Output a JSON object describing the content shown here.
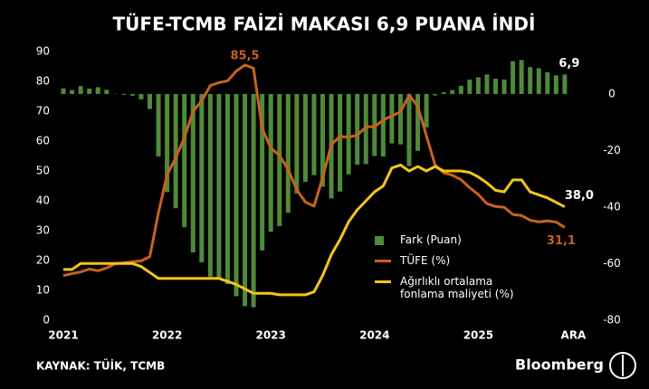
{
  "chart_data": {
    "type": "combo",
    "title": "TÜFE-TCMB FAİZİ MAKASI 6,9 PUANA İNDİ",
    "categories": [
      "2021",
      null,
      null,
      null,
      null,
      null,
      null,
      null,
      null,
      null,
      null,
      null,
      "2022",
      null,
      null,
      null,
      null,
      null,
      null,
      null,
      null,
      null,
      null,
      null,
      "2023",
      null,
      null,
      null,
      null,
      null,
      null,
      null,
      null,
      null,
      null,
      null,
      "2024",
      null,
      null,
      null,
      null,
      null,
      null,
      null,
      null,
      null,
      null,
      null,
      "2025",
      null,
      null,
      null,
      null,
      null,
      null,
      null,
      null,
      null,
      null,
      "ARA"
    ],
    "ylim": [
      0,
      90
    ],
    "yticks": [
      0,
      10,
      20,
      30,
      40,
      50,
      60,
      70,
      80,
      90
    ],
    "y2lim": [
      -80,
      15
    ],
    "y2ticks": [
      0,
      -20,
      -40,
      -60,
      -80
    ],
    "legend": "lower right",
    "series": [
      {
        "name": "Fark (Puan)",
        "type": "bar",
        "axis": "y2",
        "color": "#4f8a3b",
        "values": [
          2.0,
          1.4,
          2.8,
          1.9,
          2.4,
          1.5,
          0.1,
          -0.3,
          -0.6,
          -1.9,
          -5.3,
          -22.1,
          -34.7,
          -40.4,
          -47.1,
          -56.0,
          -59.5,
          -64.6,
          -65.6,
          -67.2,
          -71.5,
          -75.0,
          -75.4,
          -55.3,
          -48.7,
          -46.7,
          -42.0,
          -35.2,
          -31.1,
          -28.7,
          -32.8,
          -36.9,
          -34.5,
          -28.4,
          -25.0,
          -24.8,
          -21.9,
          -22.1,
          -17.5,
          -17.8,
          -25.5,
          -20.1,
          -11.8,
          -0.5,
          0.6,
          1.4,
          2.9,
          5.1,
          5.9,
          6.9,
          5.4,
          5.1,
          11.6,
          12.0,
          9.5,
          9.1,
          7.7,
          6.6,
          6.9,
          null
        ],
        "value_labels": [
          null,
          null,
          null,
          null,
          null,
          null,
          null,
          null,
          null,
          null,
          null,
          null,
          null,
          null,
          null,
          null,
          null,
          null,
          null,
          null,
          null,
          null,
          null,
          null,
          null,
          null,
          null,
          null,
          null,
          null,
          null,
          null,
          null,
          null,
          null,
          null,
          null,
          null,
          null,
          null,
          null,
          null,
          null,
          null,
          null,
          null,
          null,
          null,
          null,
          null,
          null,
          null,
          null,
          null,
          null,
          null,
          null,
          null,
          "6,9",
          null
        ]
      },
      {
        "name": "TÜFE (%)",
        "type": "line",
        "color": "#c8621f",
        "values": [
          14.97,
          15.61,
          16.19,
          17.14,
          16.59,
          17.53,
          18.95,
          19.25,
          19.58,
          19.89,
          21.31,
          36.08,
          48.69,
          54.44,
          61.14,
          69.97,
          73.5,
          78.62,
          79.6,
          80.21,
          83.45,
          85.51,
          84.39,
          64.27,
          57.68,
          55.18,
          50.51,
          43.68,
          39.59,
          38.21,
          47.83,
          58.94,
          61.53,
          61.36,
          61.98,
          64.77,
          64.86,
          67.07,
          68.5,
          69.8,
          75.45,
          71.6,
          61.78,
          51.97,
          49.38,
          48.58,
          47.09,
          44.38,
          42.12,
          39.05,
          38.1,
          37.86,
          35.41,
          35.05,
          33.52,
          32.95,
          33.29,
          32.87,
          31.1,
          null
        ],
        "value_labels": [
          null,
          null,
          null,
          null,
          null,
          null,
          null,
          null,
          null,
          null,
          null,
          null,
          null,
          null,
          null,
          null,
          null,
          null,
          null,
          null,
          null,
          "85,5",
          null,
          null,
          null,
          null,
          null,
          null,
          null,
          null,
          null,
          null,
          null,
          null,
          null,
          null,
          null,
          null,
          null,
          null,
          null,
          null,
          null,
          null,
          null,
          null,
          null,
          null,
          null,
          null,
          null,
          null,
          null,
          null,
          null,
          null,
          null,
          null,
          "31,1",
          null
        ]
      },
      {
        "name": "Ağırlıklı ortalama fonlama maliyeti (%)",
        "type": "line",
        "color": "#f5c518",
        "values": [
          17.0,
          17.0,
          19.0,
          19.0,
          19.0,
          19.0,
          19.0,
          19.0,
          19.0,
          18.0,
          16.0,
          14.0,
          14.0,
          14.0,
          14.0,
          14.0,
          14.0,
          14.0,
          14.0,
          13.0,
          12.0,
          10.5,
          9.0,
          9.0,
          9.0,
          8.5,
          8.5,
          8.5,
          8.5,
          9.5,
          15.0,
          22.0,
          27.0,
          33.0,
          37.0,
          40.0,
          43.0,
          45.0,
          51.0,
          52.0,
          50.0,
          51.5,
          50.0,
          51.5,
          50.0,
          50.0,
          50.0,
          49.5,
          48.0,
          46.0,
          43.5,
          43.0,
          47.0,
          47.0,
          43.0,
          42.0,
          41.0,
          39.5,
          38.0,
          null
        ],
        "value_labels": [
          null,
          null,
          null,
          null,
          null,
          null,
          null,
          null,
          null,
          null,
          null,
          null,
          null,
          null,
          null,
          null,
          null,
          null,
          null,
          null,
          null,
          null,
          null,
          null,
          null,
          null,
          null,
          null,
          null,
          null,
          null,
          null,
          null,
          null,
          null,
          null,
          null,
          null,
          null,
          null,
          null,
          null,
          null,
          null,
          null,
          null,
          null,
          null,
          null,
          null,
          null,
          null,
          null,
          null,
          null,
          null,
          null,
          null,
          "38,0",
          null
        ]
      }
    ],
    "source": "KAYNAK: TÜİK, TCMB",
    "brand": "Bloomberg"
  }
}
